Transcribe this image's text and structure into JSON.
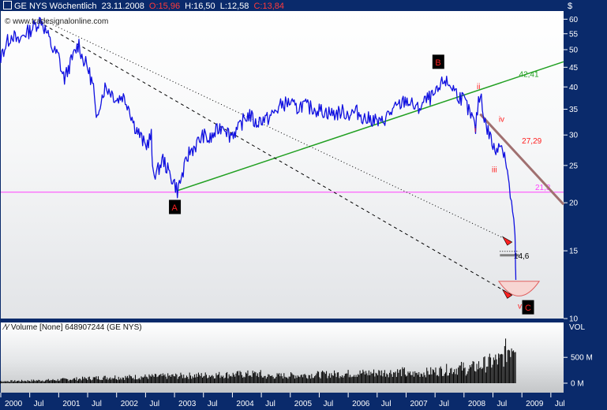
{
  "header": {
    "title": "GE NYS Wöchentlich",
    "date": "23.11.2008",
    "open": "O:15,96",
    "high": "H:16,50",
    "low": "L:12,58",
    "close": "C:13,84"
  },
  "watermark": "www.tradesignalonline.com",
  "currency": "$",
  "volume_legend": {
    "label": "Volume [None]",
    "value": "648907244",
    "symbol": "(GE NYS)"
  },
  "colors": {
    "price_line": "#1010e0",
    "support_line": "#ff40ff",
    "trend_line": "#22a022",
    "resistance_line": "#a07070",
    "wave_labels": "#ff2020",
    "box_label": "#000000",
    "volume_bars": "#000000",
    "axis_text": "#ffffff",
    "background": "#0a2a6b"
  },
  "chart_data": {
    "type": "line",
    "scale": "log",
    "ylim": [
      10,
      63
    ],
    "price_ticks": [
      60,
      55,
      50,
      45,
      40,
      35,
      30,
      25,
      20,
      15,
      10
    ],
    "xlim": [
      2000.0,
      2009.72
    ],
    "x_tick_labels": [
      {
        "label": "2000",
        "x": 2000.0
      },
      {
        "label": "Jul",
        "x": 2000.5
      },
      {
        "label": "2001",
        "x": 2001.0
      },
      {
        "label": "Jul",
        "x": 2001.5
      },
      {
        "label": "2002",
        "x": 2002.0
      },
      {
        "label": "Jul",
        "x": 2002.5
      },
      {
        "label": "2003",
        "x": 2003.0
      },
      {
        "label": "Jul",
        "x": 2003.5
      },
      {
        "label": "2004",
        "x": 2004.0
      },
      {
        "label": "Jul",
        "x": 2004.5
      },
      {
        "label": "2005",
        "x": 2005.0
      },
      {
        "label": "Jul",
        "x": 2005.5
      },
      {
        "label": "2006",
        "x": 2006.0
      },
      {
        "label": "Jul",
        "x": 2006.5
      },
      {
        "label": "2007",
        "x": 2007.0
      },
      {
        "label": "Jul",
        "x": 2007.5
      },
      {
        "label": "2008",
        "x": 2008.0
      },
      {
        "label": "Jul",
        "x": 2008.5
      },
      {
        "label": "2009",
        "x": 2009.0
      },
      {
        "label": "Jul",
        "x": 2009.5
      }
    ],
    "series": [
      {
        "points": [
          [
            1999.8,
            40
          ],
          [
            1999.9,
            44
          ],
          [
            2000.0,
            48
          ],
          [
            2000.1,
            52
          ],
          [
            2000.2,
            55
          ],
          [
            2000.3,
            52
          ],
          [
            2000.4,
            55
          ],
          [
            2000.5,
            56
          ],
          [
            2000.6,
            58
          ],
          [
            2000.7,
            60
          ],
          [
            2000.75,
            57
          ],
          [
            2000.8,
            55
          ],
          [
            2000.9,
            50
          ],
          [
            2001.0,
            48
          ],
          [
            2001.05,
            44
          ],
          [
            2001.1,
            42
          ],
          [
            2001.2,
            46
          ],
          [
            2001.3,
            50
          ],
          [
            2001.35,
            52
          ],
          [
            2001.4,
            48
          ],
          [
            2001.5,
            45
          ],
          [
            2001.6,
            40
          ],
          [
            2001.65,
            32
          ],
          [
            2001.7,
            36
          ],
          [
            2001.8,
            40
          ],
          [
            2001.9,
            39
          ],
          [
            2002.0,
            37
          ],
          [
            2002.1,
            38
          ],
          [
            2002.2,
            36
          ],
          [
            2002.3,
            32
          ],
          [
            2002.4,
            30
          ],
          [
            2002.5,
            28
          ],
          [
            2002.6,
            30
          ],
          [
            2002.62,
            24
          ],
          [
            2002.7,
            24
          ],
          [
            2002.8,
            26
          ],
          [
            2002.9,
            24
          ],
          [
            2003.0,
            22.5
          ],
          [
            2003.05,
            21.5
          ],
          [
            2003.15,
            24
          ],
          [
            2003.25,
            27
          ],
          [
            2003.35,
            28
          ],
          [
            2003.5,
            30
          ],
          [
            2003.6,
            29
          ],
          [
            2003.75,
            31
          ],
          [
            2003.85,
            32
          ],
          [
            2003.95,
            30
          ],
          [
            2004.1,
            31
          ],
          [
            2004.2,
            33
          ],
          [
            2004.3,
            34
          ],
          [
            2004.4,
            32
          ],
          [
            2004.5,
            33
          ],
          [
            2004.6,
            33
          ],
          [
            2004.7,
            34
          ],
          [
            2004.85,
            36
          ],
          [
            2005.0,
            36.5
          ],
          [
            2005.1,
            35
          ],
          [
            2005.2,
            36
          ],
          [
            2005.3,
            35.5
          ],
          [
            2005.45,
            35
          ],
          [
            2005.6,
            34.5
          ],
          [
            2005.75,
            34
          ],
          [
            2005.9,
            34.5
          ],
          [
            2006.0,
            34
          ],
          [
            2006.15,
            34.5
          ],
          [
            2006.3,
            33
          ],
          [
            2006.45,
            33
          ],
          [
            2006.55,
            32
          ],
          [
            2006.7,
            34
          ],
          [
            2006.85,
            35.5
          ],
          [
            2007.0,
            37
          ],
          [
            2007.1,
            36
          ],
          [
            2007.2,
            35
          ],
          [
            2007.35,
            37
          ],
          [
            2007.5,
            38
          ],
          [
            2007.6,
            40
          ],
          [
            2007.65,
            42
          ],
          [
            2007.7,
            41
          ],
          [
            2007.8,
            40
          ],
          [
            2007.9,
            38
          ],
          [
            2008.0,
            37
          ],
          [
            2008.05,
            35.5
          ],
          [
            2008.1,
            34
          ],
          [
            2008.15,
            33
          ],
          [
            2008.2,
            31
          ],
          [
            2008.25,
            37
          ],
          [
            2008.3,
            38
          ],
          [
            2008.35,
            33
          ],
          [
            2008.4,
            31
          ],
          [
            2008.45,
            30
          ],
          [
            2008.5,
            28
          ],
          [
            2008.55,
            27
          ],
          [
            2008.6,
            29
          ],
          [
            2008.65,
            28
          ],
          [
            2008.7,
            27
          ],
          [
            2008.75,
            24
          ],
          [
            2008.78,
            22
          ],
          [
            2008.82,
            20
          ],
          [
            2008.86,
            17.5
          ],
          [
            2008.88,
            16.6
          ],
          [
            2008.89,
            13.8
          ],
          [
            2008.895,
            12.6
          ]
        ]
      }
    ],
    "volume": {
      "label": "VOL",
      "ticks": [
        "500 M",
        "0 M"
      ],
      "ylim": [
        0,
        900
      ],
      "segments": [
        [
          1999.8,
          2000.9,
          30,
          60
        ],
        [
          2000.9,
          2002.0,
          60,
          120
        ],
        [
          2002.0,
          2004.5,
          110,
          180
        ],
        [
          2004.5,
          2007.0,
          130,
          220
        ],
        [
          2007.0,
          2008.0,
          160,
          300
        ],
        [
          2008.0,
          2008.6,
          250,
          450
        ],
        [
          2008.6,
          2008.9,
          400,
          900
        ]
      ]
    },
    "levels": [
      {
        "label": "21,3",
        "y": 21.3,
        "color": "#ff40ff"
      },
      {
        "label": "14,6",
        "y": 14.6,
        "color": "#000000"
      }
    ],
    "trendlines": [
      {
        "label": "42,41",
        "from": [
          2003.05,
          21.5
        ],
        "to": [
          2009.72,
          46.5
        ],
        "color": "#22a022",
        "style": "solid"
      },
      {
        "label": "27,29",
        "from": [
          2008.28,
          34.0
        ],
        "to": [
          2009.72,
          19.8
        ],
        "color": "#a07070",
        "style": "solid"
      },
      {
        "from": [
          2000.7,
          60
        ],
        "to": [
          2008.83,
          15.8
        ],
        "color": "#000000",
        "style": "dotted"
      },
      {
        "from": [
          2000.75,
          58
        ],
        "to": [
          2008.83,
          11.5
        ],
        "color": "#000000",
        "style": "dashed"
      }
    ],
    "annotations": [
      {
        "label": "A",
        "x": 2003.0,
        "y": 19.5,
        "kind": "box"
      },
      {
        "label": "B",
        "x": 2007.55,
        "y": 46.5,
        "kind": "box"
      },
      {
        "label": "C",
        "x": 2009.1,
        "y": 10.7,
        "kind": "box"
      },
      {
        "label": "i",
        "x": 2008.18,
        "y": 30.5,
        "kind": "wave"
      },
      {
        "label": "ii",
        "x": 2008.22,
        "y": 39.5,
        "kind": "wave"
      },
      {
        "label": "iii",
        "x": 2008.48,
        "y": 24.0,
        "kind": "wave"
      },
      {
        "label": "iv",
        "x": 2008.6,
        "y": 32.5,
        "kind": "wave"
      },
      {
        "label": "v",
        "x": 2008.93,
        "y": 10.6,
        "kind": "wave"
      }
    ],
    "target_zone": {
      "x_from": 2008.6,
      "x_to": 2009.3,
      "y_top": 12.5,
      "y_bottom": 11.3
    }
  }
}
